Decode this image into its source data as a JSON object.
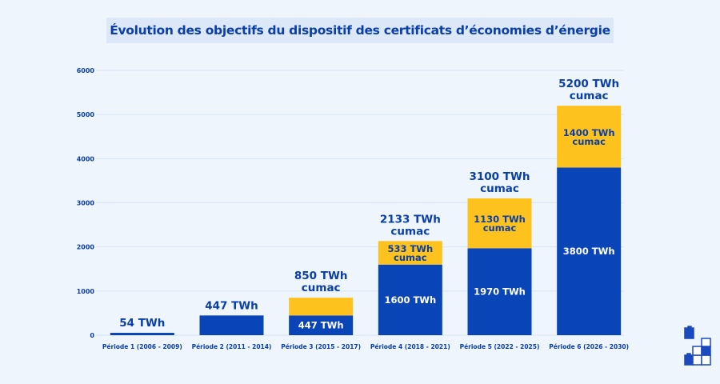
{
  "chart_data": {
    "type": "bar",
    "stacked": true,
    "title": "Évolution des objectifs du dispositif des certificats d’économies d’énergie",
    "categories": [
      "Période 1 (2006 - 2009)",
      "Période 2 (2011 - 2014)",
      "Période 3 (2015 - 2017)",
      "Période 4 (2018 - 2021)",
      "Période 5 (2022 - 2025)",
      "Période 6 (2026 - 2030)"
    ],
    "series": [
      {
        "values": [
          54,
          447,
          447,
          1600,
          1970,
          3800
        ],
        "labels": [
          "",
          "",
          "447 TWh",
          "1600 TWh",
          "1970 TWh",
          "3800 TWh"
        ],
        "color": "#0a45b8"
      },
      {
        "values": [
          0,
          0,
          403,
          533,
          1130,
          1400
        ],
        "labels": [
          "",
          "",
          "",
          "533 TWh cumac",
          "1130 TWh cumac",
          "1400 TWh cumac"
        ],
        "color": "#fdc21e"
      }
    ],
    "totals": [
      "54 TWh",
      "447 TWh",
      "850 TWh cumac",
      "2133 TWh cumac",
      "3100 TWh cumac",
      "5200 TWh cumac"
    ],
    "yticks": [
      0,
      1000,
      2000,
      3000,
      4000,
      5000,
      6000
    ],
    "ylim": [
      0,
      6000
    ],
    "grid": true
  },
  "colors": {
    "text": "#0a3ea8",
    "grid": "#d6e4f5"
  },
  "logo_icon": "stacked-blocks-icon"
}
